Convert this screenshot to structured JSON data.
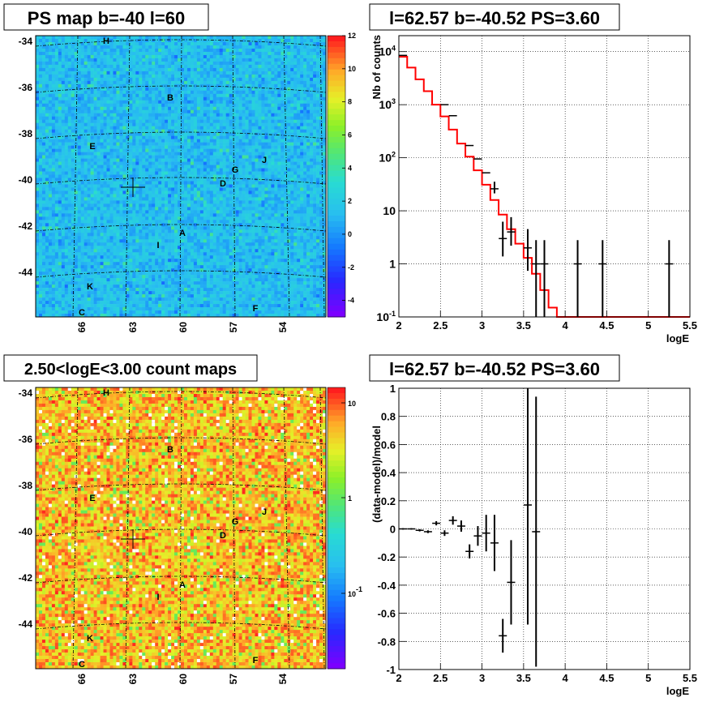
{
  "chart_data": [
    {
      "type": "heatmap",
      "title": "PS map b=-40 l=60",
      "y_ticks": [
        "-34",
        "-36",
        "-38",
        "-40",
        "-42",
        "-44"
      ],
      "x_ticks": [
        "66",
        "63",
        "60",
        "57",
        "54"
      ],
      "colorbar_ticks": [
        "12",
        "10",
        "8",
        "6",
        "4",
        "2",
        "0",
        "-2",
        "-4"
      ],
      "colorbar_range": [
        -5,
        12
      ],
      "source_labels": [
        "H",
        "B",
        "E",
        "G",
        "J",
        "D",
        "A",
        "I",
        "K",
        "C",
        "F"
      ],
      "marker": {
        "l": 62.57,
        "b": -40.52
      },
      "background_color": "#3fb9f0"
    },
    {
      "type": "line",
      "title": "l=62.57 b=-40.52 PS=3.60",
      "xlabel": "logE",
      "ylabel": "Nb of counts",
      "xlim": [
        2,
        5.5
      ],
      "ylog": true,
      "ylim": [
        0.1,
        20000
      ],
      "x_ticks": [
        "2",
        "2.5",
        "3",
        "3.5",
        "4",
        "4.5",
        "5",
        "5.5"
      ],
      "y_ticks": [
        "10^-1",
        "1",
        "10",
        "10^2",
        "10^3",
        "10^4"
      ],
      "grid": true,
      "model_color": "#ff0000",
      "model_bin_edges": [
        2.0,
        2.1,
        2.2,
        2.3,
        2.4,
        2.5,
        2.6,
        2.7,
        2.8,
        2.9,
        3.0,
        3.1,
        3.2,
        3.3,
        3.4,
        3.5,
        3.6,
        3.7,
        3.8,
        3.9,
        4.0,
        5.5
      ],
      "model_values": [
        8000,
        5000,
        3000,
        1800,
        1000,
        600,
        340,
        185,
        105,
        58,
        31,
        16,
        8.5,
        4.5,
        2.4,
        1.3,
        0.65,
        0.32,
        0.15,
        0.1,
        0.1
      ],
      "data_points": [
        {
          "x": 2.05,
          "y": 8500
        },
        {
          "x": 2.55,
          "y": 1000
        },
        {
          "x": 2.65,
          "y": 620
        },
        {
          "x": 2.85,
          "y": 170
        },
        {
          "x": 2.95,
          "y": 95
        },
        {
          "x": 3.05,
          "y": 52
        },
        {
          "x": 3.15,
          "y": 26,
          "err": 0.2
        },
        {
          "x": 3.25,
          "y": 3,
          "err": 0.6
        },
        {
          "x": 3.35,
          "y": 4,
          "err": 0.5
        },
        {
          "x": 3.55,
          "y": 2,
          "err": 0.7
        },
        {
          "x": 3.65,
          "y": 1,
          "err": 1
        },
        {
          "x": 3.75,
          "y": 1,
          "err": 1
        },
        {
          "x": 4.15,
          "y": 1,
          "err": 1
        },
        {
          "x": 4.45,
          "y": 1,
          "err": 1
        },
        {
          "x": 5.25,
          "y": 1,
          "err": 1
        }
      ]
    },
    {
      "type": "heatmap",
      "title": "2.50<logE<3.00 count maps",
      "y_ticks": [
        "-34",
        "-36",
        "-38",
        "-40",
        "-42",
        "-44"
      ],
      "x_ticks": [
        "66",
        "63",
        "60",
        "57",
        "54"
      ],
      "colorbar_ticks": [
        "10",
        "1",
        "10^-1"
      ],
      "colorbar_log": true,
      "source_labels": [
        "H",
        "B",
        "E",
        "G",
        "J",
        "D",
        "A",
        "I",
        "K",
        "C",
        "F"
      ],
      "marker": {
        "l": 62.57,
        "b": -40.52
      },
      "background_color": "#f2b430"
    },
    {
      "type": "scatter",
      "title": "l=62.57 b=-40.52 PS=3.60",
      "xlabel": "logE",
      "ylabel": "(data-model)/model",
      "xlim": [
        2,
        5.5
      ],
      "ylim": [
        -1,
        1
      ],
      "x_ticks": [
        "2",
        "2.5",
        "3",
        "3.5",
        "4",
        "4.5",
        "5",
        "5.5"
      ],
      "y_ticks": [
        "1",
        "0.8",
        "0.6",
        "0.4",
        "0.2",
        "0",
        "-0.2",
        "-0.4",
        "-0.6",
        "-0.8",
        "-1"
      ],
      "grid": true,
      "data_points": [
        {
          "x": 2.05,
          "y": 0.0,
          "err": 0.005
        },
        {
          "x": 2.15,
          "y": 0.0,
          "err": 0.005
        },
        {
          "x": 2.25,
          "y": -0.01,
          "err": 0.008
        },
        {
          "x": 2.35,
          "y": -0.02,
          "err": 0.01
        },
        {
          "x": 2.45,
          "y": 0.04,
          "err": 0.015
        },
        {
          "x": 2.55,
          "y": -0.03,
          "err": 0.02
        },
        {
          "x": 2.65,
          "y": 0.06,
          "err": 0.03
        },
        {
          "x": 2.75,
          "y": 0.02,
          "err": 0.04
        },
        {
          "x": 2.85,
          "y": -0.16,
          "err": 0.05
        },
        {
          "x": 2.95,
          "y": -0.05,
          "err": 0.07
        },
        {
          "x": 3.05,
          "y": -0.03,
          "err": 0.13
        },
        {
          "x": 3.15,
          "y": -0.1,
          "err": 0.2
        },
        {
          "x": 3.25,
          "y": -0.76,
          "err": 0.12
        },
        {
          "x": 3.35,
          "y": -0.38,
          "err": 0.3
        },
        {
          "x": 3.55,
          "y": 0.17,
          "err": 0.85
        },
        {
          "x": 3.65,
          "y": -0.02,
          "err": 0.96
        }
      ]
    }
  ]
}
